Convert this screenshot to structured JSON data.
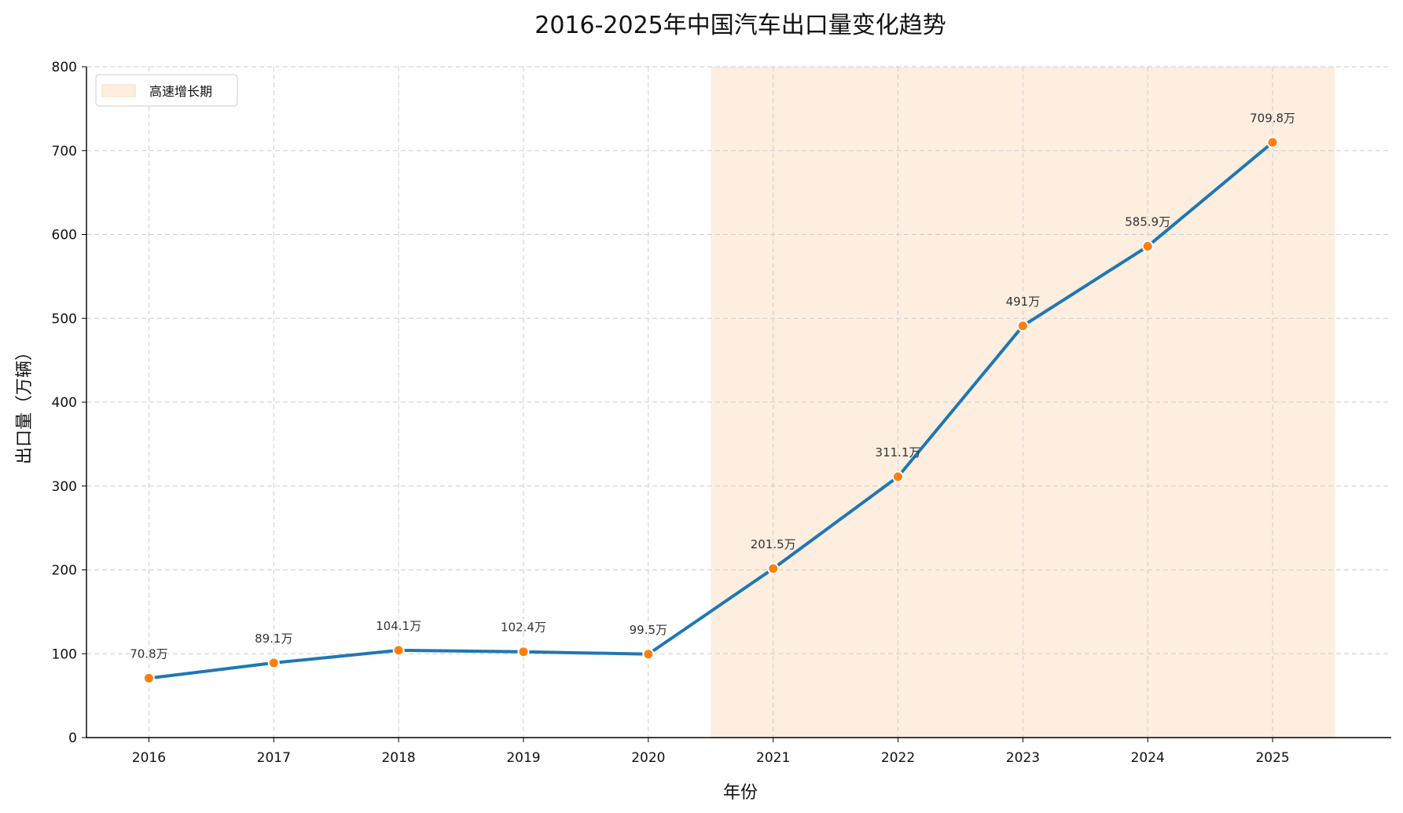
{
  "chart_data": {
    "type": "line",
    "title": "2016-2025年中国汽车出口量变化趋势",
    "xlabel": "年份",
    "ylabel": "出口量（万辆）",
    "categories": [
      "2016",
      "2017",
      "2018",
      "2019",
      "2020",
      "2021",
      "2022",
      "2023",
      "2024",
      "2025"
    ],
    "series": [
      {
        "values": [
          70.8,
          89.1,
          104.1,
          102.4,
          99.5,
          201.5,
          311.1,
          491,
          585.9,
          709.8
        ],
        "labels": [
          "70.8万",
          "89.1万",
          "104.1万",
          "102.4万",
          "99.5万",
          "201.5万",
          "311.1万",
          "491万",
          "585.9万",
          "709.8万"
        ]
      }
    ],
    "yticks": [
      "0",
      "100",
      "200",
      "300",
      "400",
      "500",
      "600",
      "700",
      "800"
    ],
    "ylim": [
      0,
      800
    ],
    "xlim": [
      2015.5,
      2025.95
    ],
    "grid": true,
    "legend_position": "top-left",
    "legend": [
      {
        "label": "高速增长期"
      }
    ],
    "highlight_region": {
      "label": "高速增长期",
      "x_start": 2020.5,
      "x_end": 2025.5
    },
    "colors": {
      "line": "#1f77b4",
      "marker": "#ff7f0e",
      "marker_edge": "#ffffff",
      "region": "#fdeee0",
      "grid": "#cccccc"
    }
  }
}
